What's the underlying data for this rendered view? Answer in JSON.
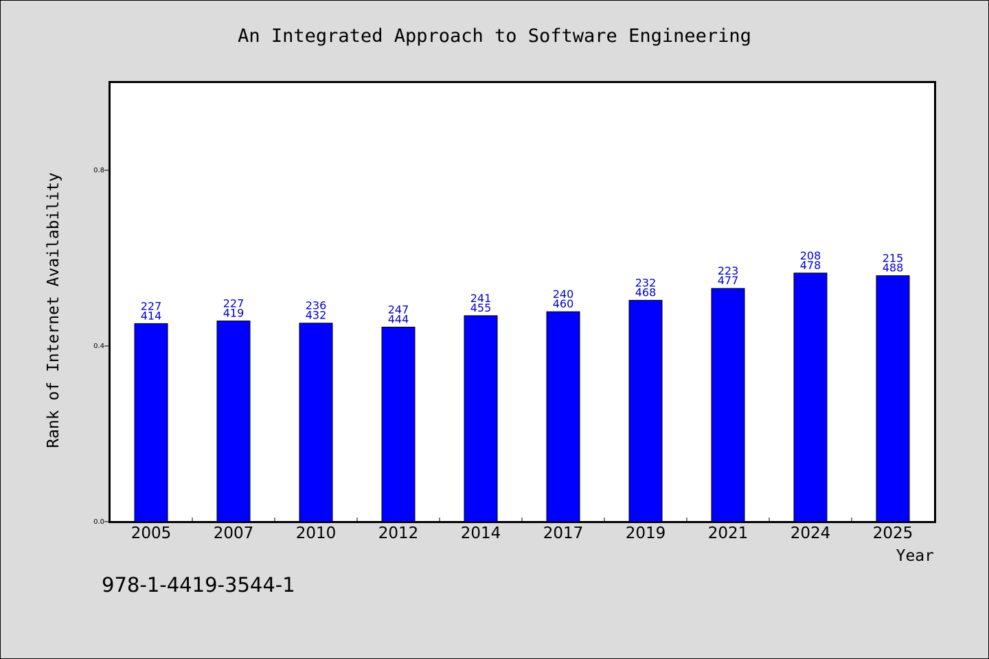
{
  "chart_data": {
    "type": "bar",
    "title": "An Integrated Approach to Software Engineering",
    "xlabel": "Year",
    "ylabel": "Rank of Internet Availability",
    "categories": [
      "2005",
      "2007",
      "2010",
      "2012",
      "2014",
      "2017",
      "2019",
      "2021",
      "2024",
      "2025"
    ],
    "values": [
      0.451,
      0.457,
      0.452,
      0.443,
      0.469,
      0.478,
      0.504,
      0.531,
      0.566,
      0.56
    ],
    "bar_labels_top": [
      "227",
      "227",
      "236",
      "247",
      "241",
      "240",
      "232",
      "223",
      "208",
      "215"
    ],
    "bar_labels_bottom": [
      "414",
      "419",
      "432",
      "444",
      "455",
      "460",
      "468",
      "477",
      "478",
      "488"
    ],
    "yticks": [
      "0.0",
      "0.4",
      "0.8"
    ],
    "ylim": [
      0,
      1.0
    ],
    "grid": false,
    "bar_color": "#0000ff",
    "label_color": "#0000cc"
  },
  "footnote": "978-1-4419-3544-1"
}
